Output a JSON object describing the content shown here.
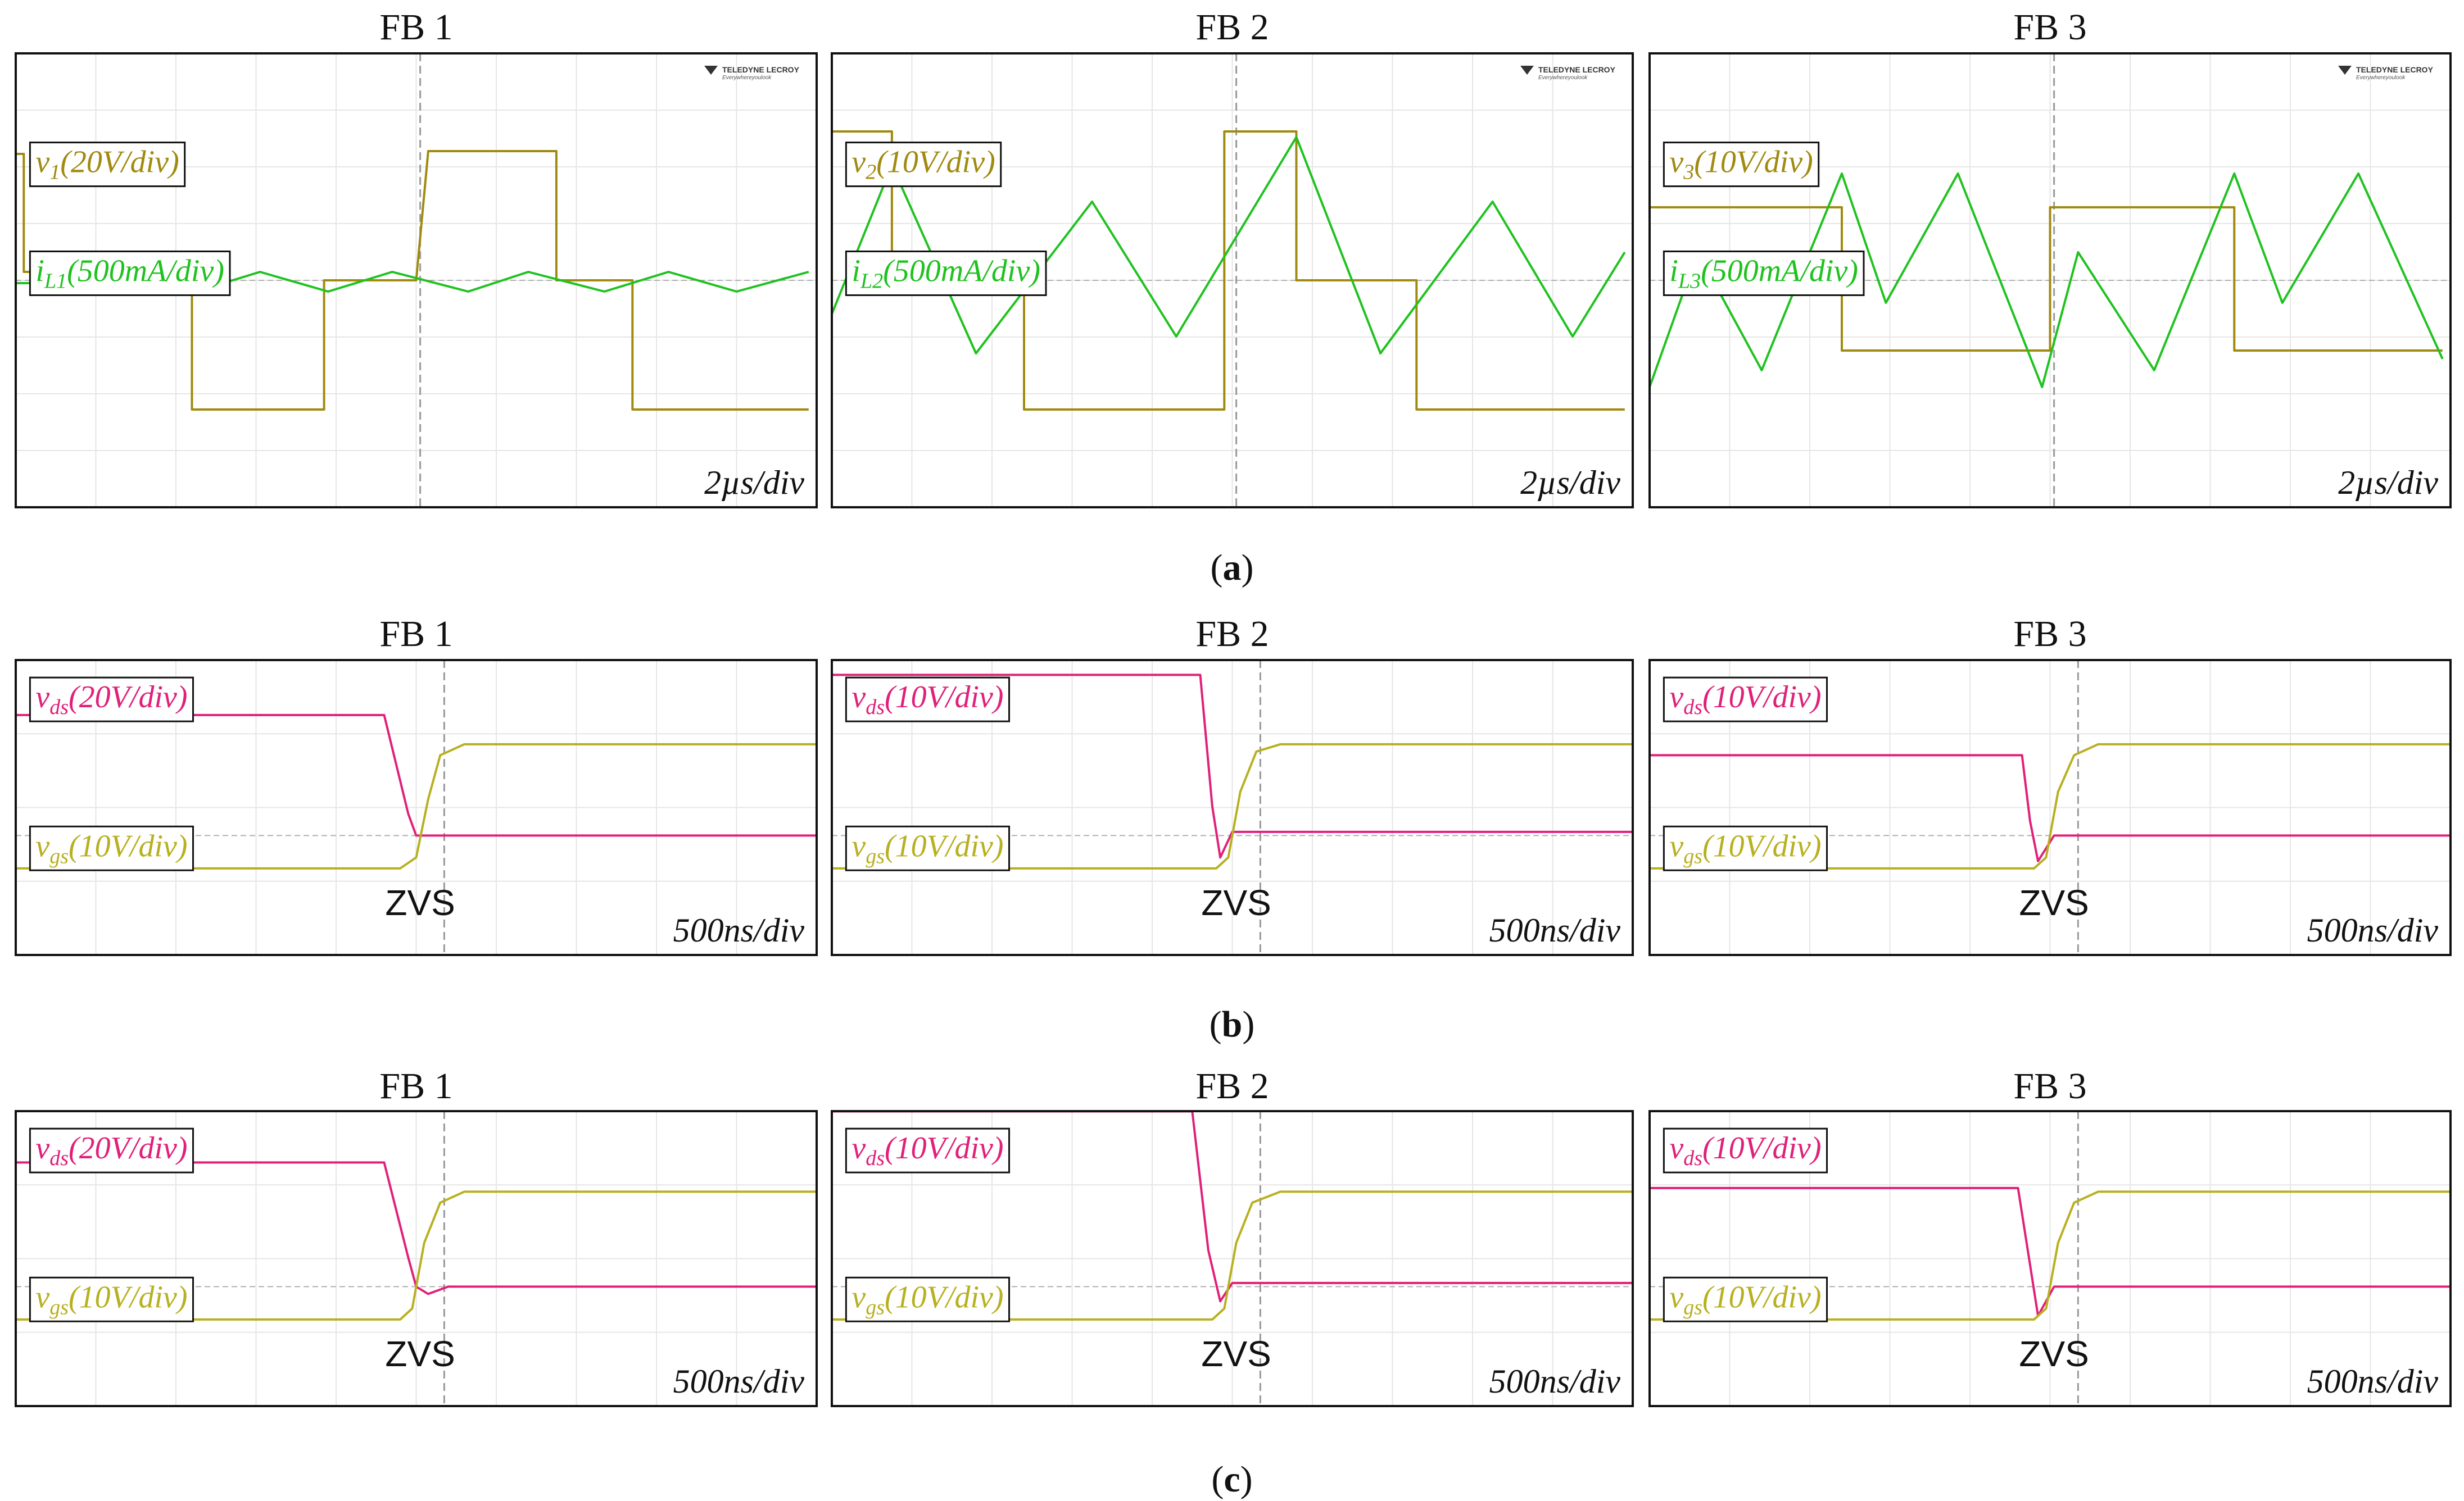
{
  "chart_data": [
    {
      "type": "line",
      "row": "a",
      "title": "FB 1",
      "time_division": "2µs/div",
      "logo": "TELEDYNE LECROY",
      "logo_tagline": "Everywhereyoulook",
      "series": [
        {
          "label_main": "v",
          "label_sub": "1",
          "label_rest": "(20V/div)",
          "color": "#a08a10",
          "x": [
            0,
            0.2,
            0.2,
            4.4,
            4.4,
            5.0,
            7.7,
            7.7,
            10.0,
            10.3,
            13.5,
            13.5,
            15.4,
            15.4,
            19.8
          ],
          "y": [
            2.25,
            2.25,
            0.15,
            0.15,
            -2.3,
            -2.3,
            -2.3,
            0,
            0,
            2.3,
            2.3,
            0,
            0,
            -2.3,
            -2.3
          ]
        },
        {
          "label_main": "i",
          "label_sub": "L1",
          "label_rest": "(500mA/div)",
          "color": "#1fc21f",
          "x": [
            0,
            1.5,
            2.6,
            4.5,
            6.1,
            7.8,
            9.4,
            11.3,
            12.8,
            14.7,
            16.3,
            18.0,
            19.8
          ],
          "y": [
            -0.05,
            -0.05,
            0.15,
            -0.2,
            0.15,
            -0.2,
            0.15,
            -0.2,
            0.15,
            -0.2,
            0.15,
            -0.2,
            0.15
          ]
        }
      ]
    },
    {
      "type": "line",
      "row": "a",
      "title": "FB 2",
      "time_division": "2µs/div",
      "logo": "TELEDYNE LECROY",
      "logo_tagline": "Everywhereyoulook",
      "series": [
        {
          "label_main": "v",
          "label_sub": "2",
          "label_rest": "(10V/div)",
          "color": "#a08a10",
          "x": [
            0,
            1.5,
            1.5,
            4.8,
            4.8,
            9.8,
            9.8,
            11.6,
            11.6,
            14.6,
            14.6,
            19.8
          ],
          "y": [
            2.65,
            2.65,
            0,
            0,
            -2.3,
            -2.3,
            2.65,
            2.65,
            0,
            0,
            -2.3,
            -2.3
          ]
        },
        {
          "label_main": "i",
          "label_sub": "L2",
          "label_rest": "(500mA/div)",
          "color": "#1fc21f",
          "x": [
            0,
            1.5,
            3.6,
            6.5,
            8.6,
            11.6,
            13.7,
            16.5,
            18.5,
            19.8
          ],
          "y": [
            -0.6,
            2.05,
            -1.3,
            1.4,
            -1.0,
            2.55,
            -1.3,
            1.4,
            -1.0,
            0.5
          ]
        }
      ]
    },
    {
      "type": "line",
      "row": "a",
      "title": "FB 3",
      "time_division": "2µs/div",
      "logo": "TELEDYNE LECROY",
      "logo_tagline": "Everywhereyoulook",
      "series": [
        {
          "label_main": "v",
          "label_sub": "3",
          "label_rest": "(10V/div)",
          "color": "#a08a10",
          "x": [
            0,
            4.8,
            4.8,
            10.0,
            10.0,
            14.6,
            14.6,
            19.8
          ],
          "y": [
            1.3,
            1.3,
            -1.25,
            -1.25,
            1.3,
            1.3,
            -1.25,
            -1.25
          ]
        },
        {
          "label_main": "i",
          "label_sub": "L3",
          "label_rest": "(500mA/div)",
          "color": "#1fc21f",
          "x": [
            0,
            1.2,
            2.8,
            4.8,
            5.9,
            7.7,
            9.8,
            10.7,
            12.6,
            14.6,
            15.8,
            17.7,
            19.8
          ],
          "y": [
            -1.9,
            0.5,
            -1.6,
            1.9,
            -0.4,
            1.9,
            -1.9,
            0.5,
            -1.6,
            1.9,
            -0.4,
            1.9,
            -1.4
          ]
        }
      ]
    },
    {
      "type": "line",
      "row": "b",
      "title": "FB 1",
      "time_division": "500ns/div",
      "annotation": "ZVS",
      "series": [
        {
          "label_main": "v",
          "label_sub": "ds",
          "label_rest": "(20V/div)",
          "color": "#e0207a",
          "x": [
            0,
            4.6,
            4.9,
            5.0,
            5.2,
            5.5,
            10.0
          ],
          "y": [
            1.65,
            1.65,
            0.3,
            0.0,
            0.0,
            0.0,
            0.0
          ]
        },
        {
          "label_main": "v",
          "label_sub": "gs",
          "label_rest": "(10V/div)",
          "color": "#b8b020",
          "x": [
            0,
            4.8,
            5.0,
            5.15,
            5.3,
            5.6,
            10.0
          ],
          "y": [
            -0.45,
            -0.45,
            -0.3,
            0.5,
            1.1,
            1.25,
            1.25
          ]
        }
      ]
    },
    {
      "type": "line",
      "row": "b",
      "title": "FB 2",
      "time_division": "500ns/div",
      "annotation": "ZVS",
      "series": [
        {
          "label_main": "v",
          "label_sub": "ds",
          "label_rest": "(10V/div)",
          "color": "#e0207a",
          "x": [
            0,
            4.6,
            4.75,
            4.85,
            5.0,
            5.3,
            10.0
          ],
          "y": [
            2.2,
            2.2,
            0.4,
            -0.3,
            0.05,
            0.05,
            0.05
          ]
        },
        {
          "label_main": "v",
          "label_sub": "gs",
          "label_rest": "(10V/div)",
          "color": "#b8b020",
          "x": [
            0,
            4.8,
            4.95,
            5.1,
            5.3,
            5.6,
            10.0
          ],
          "y": [
            -0.45,
            -0.45,
            -0.3,
            0.6,
            1.15,
            1.25,
            1.25
          ]
        }
      ]
    },
    {
      "type": "line",
      "row": "b",
      "title": "FB 3",
      "time_division": "500ns/div",
      "annotation": "ZVS",
      "series": [
        {
          "label_main": "v",
          "label_sub": "ds",
          "label_rest": "(10V/div)",
          "color": "#e0207a",
          "x": [
            0,
            4.65,
            4.75,
            4.85,
            5.05,
            5.3,
            10.0
          ],
          "y": [
            1.1,
            1.1,
            0.2,
            -0.35,
            0.0,
            0.0,
            0.0
          ]
        },
        {
          "label_main": "v",
          "label_sub": "gs",
          "label_rest": "(10V/div)",
          "color": "#b8b020",
          "x": [
            0,
            4.8,
            4.95,
            5.1,
            5.3,
            5.6,
            10.0
          ],
          "y": [
            -0.45,
            -0.45,
            -0.3,
            0.6,
            1.1,
            1.25,
            1.25
          ]
        }
      ]
    },
    {
      "type": "line",
      "row": "c",
      "title": "FB 1",
      "time_division": "500ns/div",
      "annotation": "ZVS",
      "series": [
        {
          "label_main": "v",
          "label_sub": "ds",
          "label_rest": "(20V/div)",
          "color": "#e0207a",
          "x": [
            0,
            4.6,
            4.9,
            5.0,
            5.15,
            5.4,
            10.0
          ],
          "y": [
            1.7,
            1.7,
            0.4,
            0.0,
            -0.1,
            0.0,
            0.0
          ]
        },
        {
          "label_main": "v",
          "label_sub": "gs",
          "label_rest": "(10V/div)",
          "color": "#b8b020",
          "x": [
            0,
            4.8,
            4.95,
            5.1,
            5.3,
            5.6,
            10.0
          ],
          "y": [
            -0.45,
            -0.45,
            -0.3,
            0.6,
            1.15,
            1.3,
            1.3
          ]
        }
      ]
    },
    {
      "type": "line",
      "row": "c",
      "title": "FB 2",
      "time_division": "500ns/div",
      "annotation": "ZVS",
      "series": [
        {
          "label_main": "v",
          "label_sub": "ds",
          "label_rest": "(10V/div)",
          "color": "#e0207a",
          "x": [
            0,
            4.5,
            4.7,
            4.85,
            5.0,
            5.3,
            10.0
          ],
          "y": [
            2.4,
            2.4,
            0.5,
            -0.2,
            0.05,
            0.05,
            0.05
          ]
        },
        {
          "label_main": "v",
          "label_sub": "gs",
          "label_rest": "(10V/div)",
          "color": "#b8b020",
          "x": [
            0,
            4.75,
            4.9,
            5.05,
            5.25,
            5.6,
            10.0
          ],
          "y": [
            -0.45,
            -0.45,
            -0.3,
            0.6,
            1.15,
            1.3,
            1.3
          ]
        }
      ]
    },
    {
      "type": "line",
      "row": "c",
      "title": "FB 3",
      "time_division": "500ns/div",
      "annotation": "ZVS",
      "series": [
        {
          "label_main": "v",
          "label_sub": "ds",
          "label_rest": "(10V/div)",
          "color": "#e0207a",
          "x": [
            0,
            4.6,
            4.75,
            4.85,
            5.05,
            5.3,
            10.0
          ],
          "y": [
            1.35,
            1.35,
            0.3,
            -0.4,
            0.0,
            0.0,
            0.0
          ]
        },
        {
          "label_main": "v",
          "label_sub": "gs",
          "label_rest": "(10V/div)",
          "color": "#b8b020",
          "x": [
            0,
            4.8,
            4.95,
            5.1,
            5.3,
            5.6,
            10.0
          ],
          "y": [
            -0.45,
            -0.45,
            -0.3,
            0.6,
            1.15,
            1.3,
            1.3
          ]
        }
      ]
    }
  ],
  "subfigure_labels": {
    "a": "a",
    "b": "b",
    "c": "c"
  }
}
